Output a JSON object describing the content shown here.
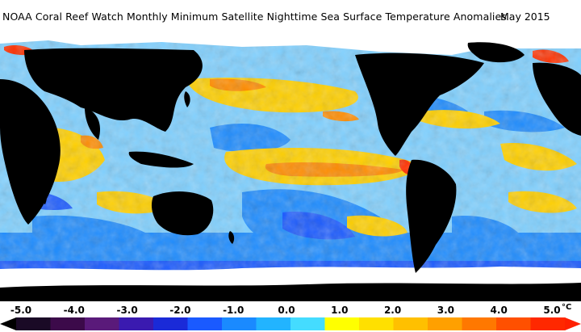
{
  "title": "NOAA Coral Reef Watch Monthly Minimum Satellite Nighttime Sea Surface Temperature Anomalies",
  "date": "May 2015",
  "legend": {
    "unit": "°C",
    "ticks": [
      "-5.0",
      "-4.0",
      "-3.0",
      "-2.0",
      "-1.0",
      "0.0",
      "1.0",
      "2.0",
      "3.0",
      "4.0",
      "5.0"
    ],
    "colors": [
      "#1a0a26",
      "#3c0a4a",
      "#5a1a7a",
      "#3a1ab0",
      "#1a2ad8",
      "#1a5aff",
      "#1a8aff",
      "#22b4ff",
      "#44dcff",
      "#ffff00",
      "#ffe000",
      "#ffc000",
      "#ffa000",
      "#ff7800",
      "#ff5000",
      "#ff2800"
    ],
    "start_color": "#000000",
    "end_color": "#ff2000"
  },
  "map_colors": {
    "land": "#000000",
    "ice": "#ffffff",
    "ocean_base": "#8ad8ff",
    "cool": "#1a8aff",
    "warm": "#ffd200",
    "hot": "#ff7a00",
    "very_hot": "#ff2800"
  }
}
